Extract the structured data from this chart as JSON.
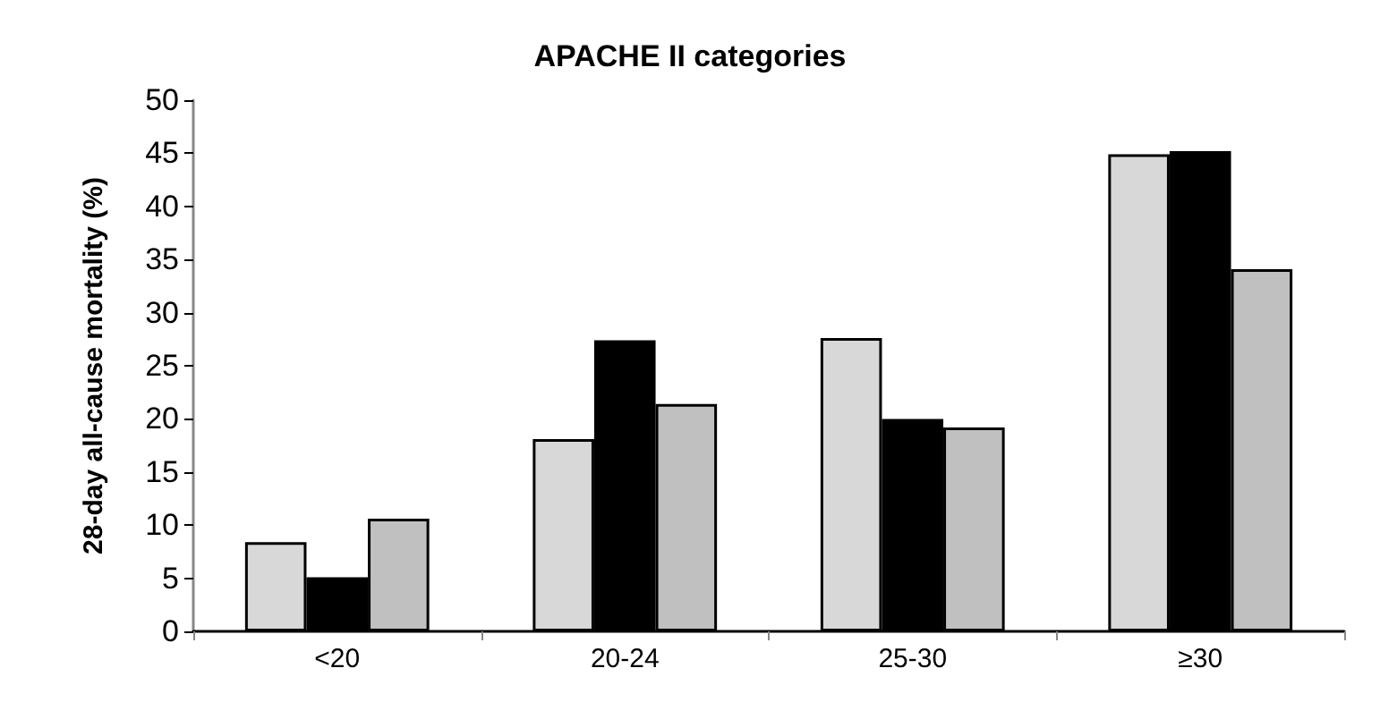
{
  "chart_data": {
    "type": "bar",
    "title": "APACHE II categories",
    "ylabel": "28-day all-cause mortality (%)",
    "categories": [
      "<20",
      "20-24",
      "25-30",
      "≥30"
    ],
    "series": [
      {
        "color": "#d8d8d8",
        "values": [
          8.4,
          18.1,
          27.6,
          44.9
        ]
      },
      {
        "color": "#000000",
        "values": [
          5.1,
          27.4,
          20.0,
          45.2
        ]
      },
      {
        "color": "#c0c0c0",
        "values": [
          10.6,
          21.4,
          19.2,
          34.1
        ]
      }
    ],
    "ylim": [
      0,
      50
    ],
    "yticks": [
      0,
      5,
      10,
      15,
      20,
      25,
      30,
      35,
      40,
      45,
      50
    ],
    "grid": false
  }
}
